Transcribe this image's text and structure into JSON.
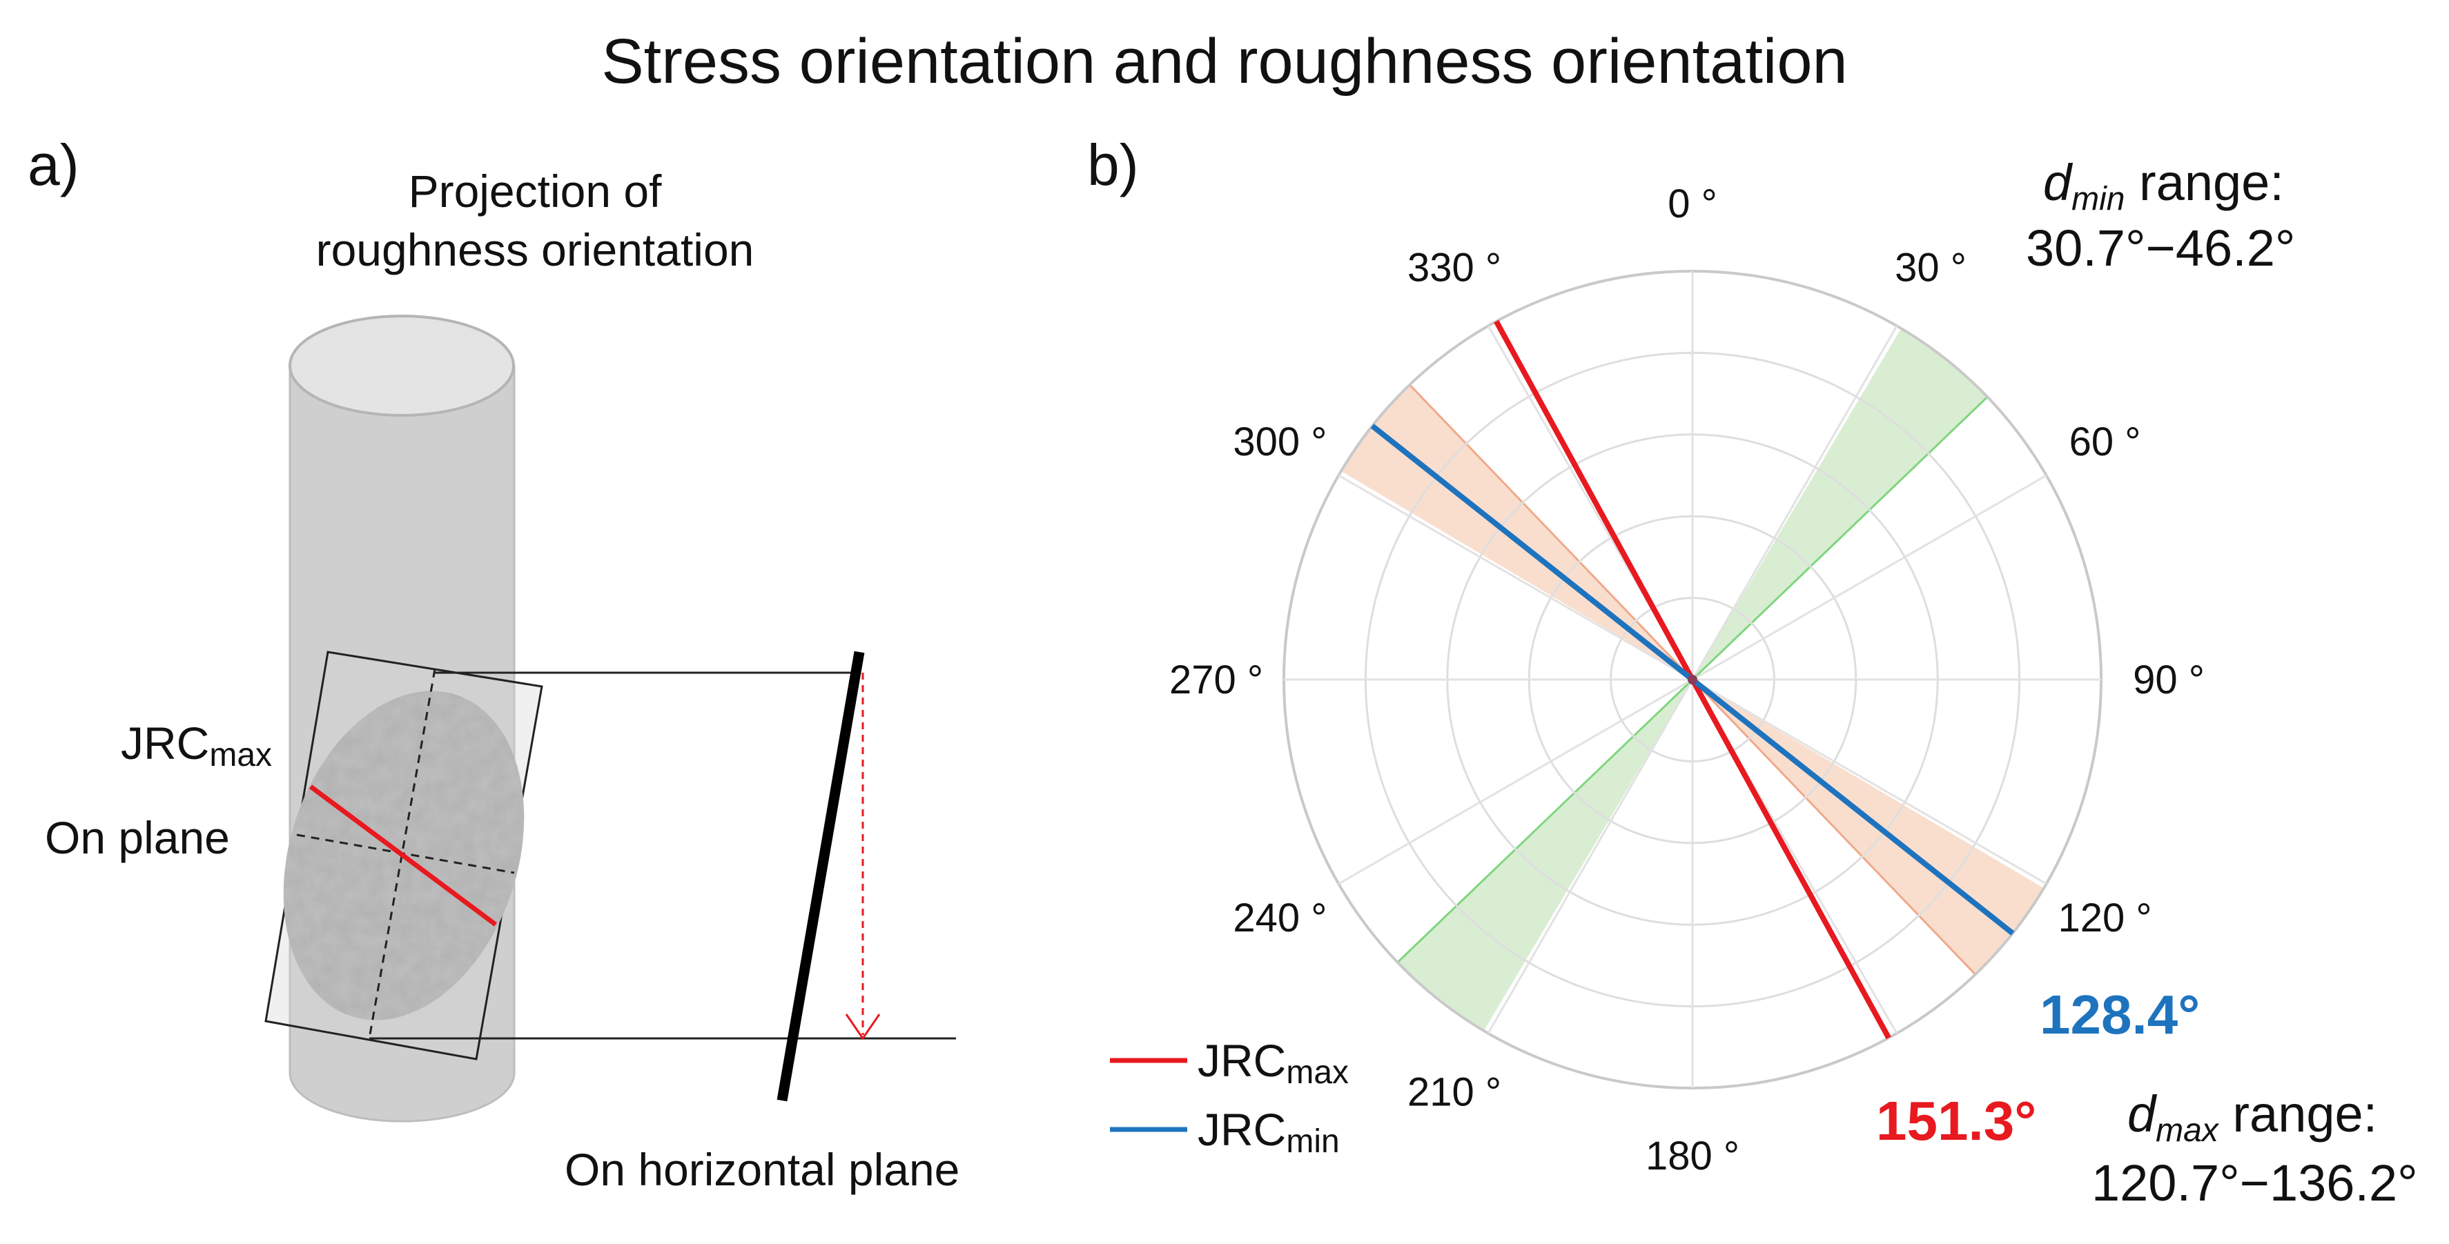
{
  "title": "Stress orientation and roughness orientation",
  "panel_a": {
    "label": "a)",
    "projection_line1": "Projection of",
    "projection_line2": "roughness orientation",
    "jrc_main": "JRC",
    "jrc_sub": "max",
    "on_plane": "On plane",
    "on_horizontal": "On horizontal plane"
  },
  "panel_b": {
    "label": "b)",
    "dmin_d": "d",
    "dmin_sub": "min",
    "dmin_range_word": " range:",
    "dmin_range": "30.7°−46.2°",
    "dmax_d": "d",
    "dmax_sub": "max",
    "dmax_range_word": " range:",
    "dmax_range": "120.7°−136.2°",
    "jrcmax_angle_label": "151.3°",
    "jrcmin_angle_label": "128.4°"
  },
  "chart_data": {
    "type": "polar",
    "angle_ticks": [
      {
        "deg": 0,
        "label": "0 °"
      },
      {
        "deg": 30,
        "label": "30 °"
      },
      {
        "deg": 60,
        "label": "60 °"
      },
      {
        "deg": 90,
        "label": "90 °"
      },
      {
        "deg": 120,
        "label": "120 °"
      },
      {
        "deg": 150,
        "label": ""
      },
      {
        "deg": 180,
        "label": "180 °"
      },
      {
        "deg": 210,
        "label": "210 °"
      },
      {
        "deg": 240,
        "label": "240 °"
      },
      {
        "deg": 270,
        "label": "270 °"
      },
      {
        "deg": 300,
        "label": "300 °"
      },
      {
        "deg": 330,
        "label": "330 °"
      }
    ],
    "rings": 5,
    "sectors": [
      {
        "name": "d_min range",
        "from": 30.7,
        "to": 46.2,
        "color": "#cfe8c8",
        "edge": "#7fd67f"
      },
      {
        "name": "d_max range",
        "from": 120.7,
        "to": 136.2,
        "color": "#f8d6c2",
        "edge": "#f0a98a"
      }
    ],
    "lines": [
      {
        "name": "JRC_max",
        "angle": 151.3,
        "color": "#e8191f"
      },
      {
        "name": "JRC_min",
        "angle": 128.4,
        "color": "#1e73be"
      }
    ],
    "legend": [
      {
        "main": "JRC",
        "sub": "max",
        "color": "#e8191f"
      },
      {
        "main": "JRC",
        "sub": "min",
        "color": "#1e73be"
      }
    ]
  }
}
